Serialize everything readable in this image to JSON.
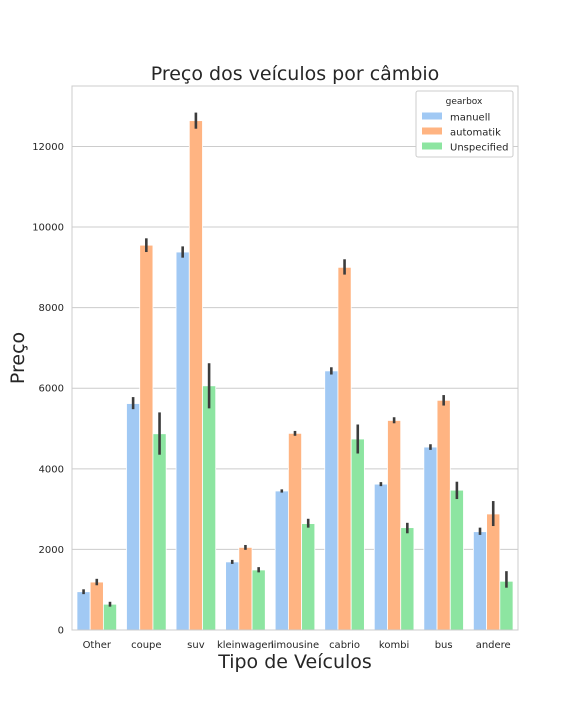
{
  "chart_data": {
    "type": "bar",
    "title": "Preço dos veículos por câmbio",
    "xlabel": "Tipo de Veículos",
    "ylabel": "Preço",
    "categories": [
      "Other",
      "coupe",
      "suv",
      "kleinwagen",
      "limousine",
      "cabrio",
      "kombi",
      "bus",
      "andere"
    ],
    "ylim": [
      0,
      13500
    ],
    "yticks": [
      0,
      2000,
      4000,
      6000,
      8000,
      10000,
      12000
    ],
    "grid": "horizontal",
    "legend": {
      "title": "gearbox",
      "placement": "top-right"
    },
    "series": [
      {
        "name": "manuell",
        "color": "#a1c9f4",
        "values": [
          950,
          5620,
          9380,
          1690,
          3450,
          6430,
          3620,
          4540,
          2440
        ],
        "ci": [
          [
            890,
            1010
          ],
          [
            5480,
            5780
          ],
          [
            9240,
            9520
          ],
          [
            1640,
            1740
          ],
          [
            3410,
            3490
          ],
          [
            6340,
            6520
          ],
          [
            3570,
            3670
          ],
          [
            4470,
            4610
          ],
          [
            2360,
            2540
          ]
        ]
      },
      {
        "name": "automatik",
        "color": "#ffb482",
        "values": [
          1190,
          9550,
          12640,
          2050,
          4880,
          9000,
          5200,
          5700,
          2880
        ],
        "ci": [
          [
            1110,
            1270
          ],
          [
            9380,
            9720
          ],
          [
            12440,
            12840
          ],
          [
            1990,
            2110
          ],
          [
            4820,
            4940
          ],
          [
            8820,
            9200
          ],
          [
            5130,
            5280
          ],
          [
            5570,
            5830
          ],
          [
            2580,
            3200
          ]
        ]
      },
      {
        "name": "Unspecified",
        "color": "#8de5a1",
        "values": [
          640,
          4870,
          6060,
          1490,
          2640,
          4740,
          2540,
          3470,
          1210
        ],
        "ci": [
          [
            580,
            700
          ],
          [
            4350,
            5400
          ],
          [
            5500,
            6620
          ],
          [
            1430,
            1560
          ],
          [
            2540,
            2760
          ],
          [
            4380,
            5100
          ],
          [
            2400,
            2660
          ],
          [
            3250,
            3680
          ],
          [
            1050,
            1460
          ]
        ]
      }
    ]
  }
}
